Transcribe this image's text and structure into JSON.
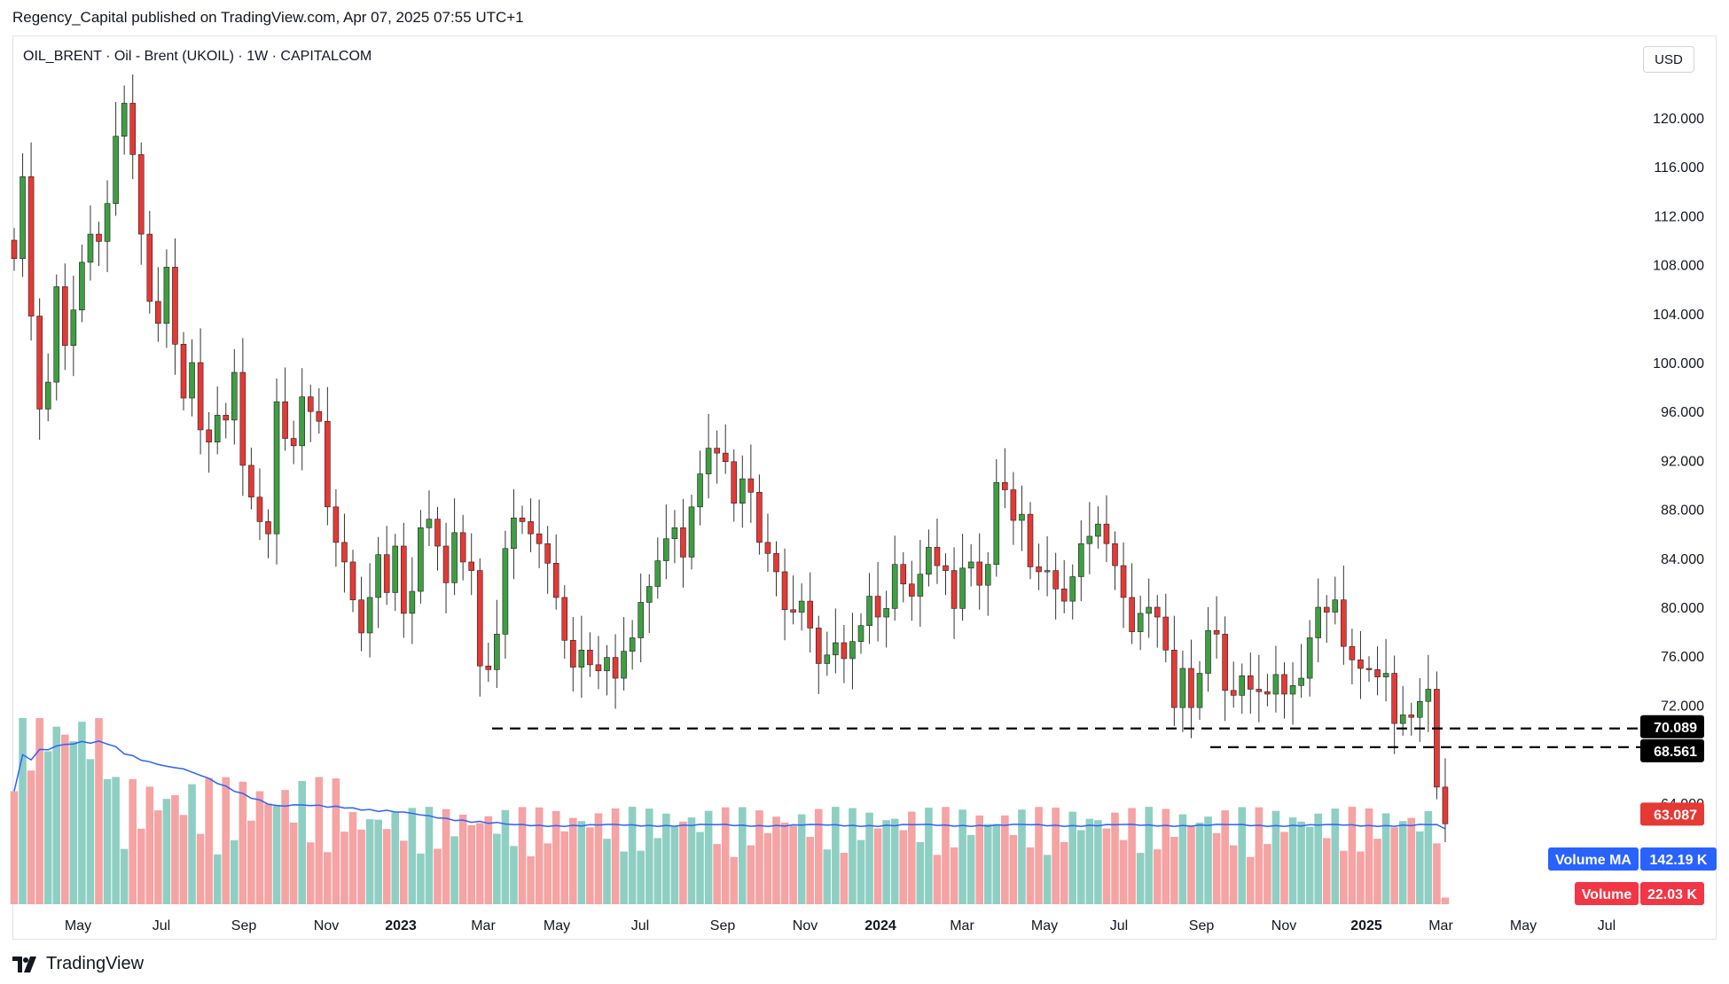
{
  "header": {
    "published_by": "Regency_Capital published on TradingView.com, Apr 07, 2025 07:55 UTC+1"
  },
  "symbol": {
    "title": "OIL_BRENT · Oil - Brent (UKOIL) · 1W · CAPITALCOM"
  },
  "currency_button": "USD",
  "brand": {
    "logo_text": "TV",
    "name": "TradingView"
  },
  "colors": {
    "up": "#26a69a",
    "up_body": "#3a9a3a",
    "down": "#e0313b",
    "vol_up": "#8fcfc3",
    "vol_down": "#f5a3a3",
    "ma": "#2962ff",
    "level": "#000000"
  },
  "chart_data": {
    "type": "candlestick",
    "ylim": [
      60,
      124
    ],
    "yticks": [
      "120.000",
      "116.000",
      "112.000",
      "108.000",
      "104.000",
      "100.000",
      "96.000",
      "92.000",
      "88.000",
      "84.000",
      "80.000",
      "76.000",
      "72.000",
      "68.000",
      "64.000"
    ],
    "xticks": [
      {
        "label": "May",
        "bold": false
      },
      {
        "label": "Jul",
        "bold": false
      },
      {
        "label": "Sep",
        "bold": false
      },
      {
        "label": "Nov",
        "bold": false
      },
      {
        "label": "2023",
        "bold": true
      },
      {
        "label": "Mar",
        "bold": false
      },
      {
        "label": "May",
        "bold": false
      },
      {
        "label": "Jul",
        "bold": false
      },
      {
        "label": "Sep",
        "bold": false
      },
      {
        "label": "Nov",
        "bold": false
      },
      {
        "label": "2024",
        "bold": true
      },
      {
        "label": "Mar",
        "bold": false
      },
      {
        "label": "May",
        "bold": false
      },
      {
        "label": "Jul",
        "bold": false
      },
      {
        "label": "Sep",
        "bold": false
      },
      {
        "label": "Nov",
        "bold": false
      },
      {
        "label": "2025",
        "bold": true
      },
      {
        "label": "Mar",
        "bold": false
      },
      {
        "label": "May",
        "bold": false
      },
      {
        "label": "Jul",
        "bold": false
      }
    ],
    "closes": [
      108.5,
      115.2,
      103.8,
      96.2,
      98.4,
      106.2,
      101.4,
      104.3,
      108.2,
      110.5,
      109.9,
      113.0,
      118.5,
      121.2,
      117.0,
      110.5,
      105.0,
      103.2,
      107.8,
      101.5,
      97.1,
      100.0,
      94.5,
      93.5,
      95.7,
      95.3,
      99.2,
      91.6,
      89.0,
      87.0,
      86.0,
      96.8,
      93.8,
      93.2,
      97.2,
      96.0,
      95.2,
      88.2,
      85.3,
      83.7,
      80.6,
      77.9,
      80.8,
      84.3,
      81.2,
      85.0,
      79.5,
      81.3,
      86.5,
      87.2,
      85.0,
      82.0,
      86.1,
      83.7,
      83.0,
      75.2,
      74.9,
      77.8,
      84.8,
      87.3,
      87.0,
      86.0,
      85.2,
      83.6,
      80.8,
      77.3,
      75.1,
      76.5,
      75.3,
      74.8,
      75.9,
      74.2,
      76.4,
      77.5,
      80.4,
      81.7,
      83.8,
      85.6,
      86.5,
      84.1,
      88.2,
      90.9,
      93.0,
      92.6,
      91.9,
      88.5,
      90.5,
      89.4,
      85.3,
      84.4,
      82.9,
      79.8,
      79.6,
      80.5,
      78.3,
      75.4,
      76.1,
      77.1,
      75.8,
      77.2,
      78.5,
      80.9,
      79.2,
      79.9,
      83.5,
      81.9,
      80.9,
      82.7,
      84.9,
      83.4,
      83.0,
      79.9,
      83.2,
      83.7,
      81.8,
      83.5,
      90.2,
      89.6,
      87.1,
      87.6,
      83.3,
      82.9,
      83.0,
      81.5,
      80.5,
      82.5,
      85.2,
      85.8,
      86.8,
      85.2,
      83.4,
      80.8,
      78.0,
      79.5,
      80.0,
      79.2,
      76.5,
      71.8,
      75.0,
      71.8,
      74.6,
      78.1,
      77.8,
      73.2,
      72.8,
      74.4,
      73.3,
      73.1,
      72.9,
      74.5,
      72.9,
      73.6,
      74.2,
      77.5,
      80.0,
      79.6,
      80.6,
      76.8,
      75.7,
      75.0,
      74.9,
      74.3,
      74.6,
      70.5,
      71.2,
      71.0,
      72.3,
      73.3,
      65.3,
      62.3
    ],
    "levels": [
      {
        "value": 70.089,
        "label": "70.089"
      },
      {
        "value": 68.561,
        "label": "68.561"
      }
    ],
    "last_price": {
      "value": 63.087,
      "label": "63.087"
    },
    "volume_ma_label": "Volume MA",
    "volume_ma_value": "142.19 K",
    "volume_label": "Volume",
    "volume_value": "22.03 K"
  }
}
